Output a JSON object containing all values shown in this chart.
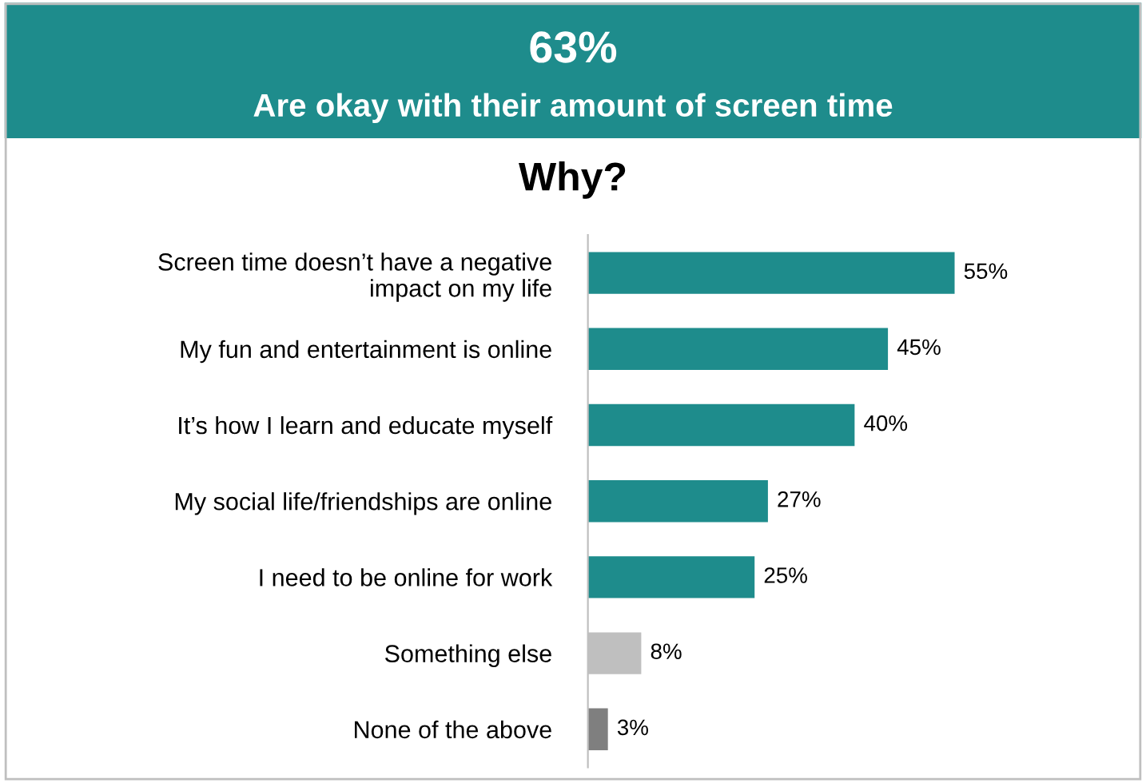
{
  "chart_data": {
    "type": "bar",
    "orientation": "horizontal",
    "title": "63%",
    "subtitle": "Are okay with their amount of screen time",
    "annotations": [
      "Why?"
    ],
    "categories": [
      "Screen time doesn’t have a negative\nimpact on my life",
      "My fun and entertainment is online",
      "It’s how I learn and educate myself",
      "My social life/friendships are online",
      "I need to be online for work",
      "Something else",
      "None of the above"
    ],
    "values": [
      55,
      45,
      40,
      27,
      25,
      8,
      3
    ],
    "colors": [
      "#1e8c8c",
      "#1e8c8c",
      "#1e8c8c",
      "#1e8c8c",
      "#1e8c8c",
      "#bfbfbf",
      "#7f7f7f"
    ],
    "value_labels": [
      "55%",
      "45%",
      "40%",
      "27%",
      "25%",
      "8%",
      "3%"
    ],
    "data_labels": false
  }
}
